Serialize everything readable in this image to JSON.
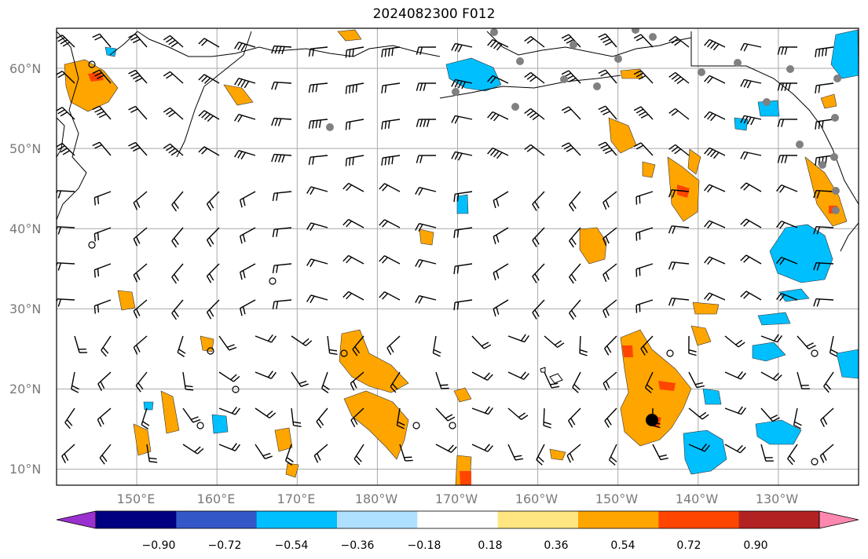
{
  "title": "2024082300 F012",
  "lat_labels": [
    "60°N",
    "50°N",
    "40°N",
    "30°N",
    "20°N",
    "10°N"
  ],
  "lon_labels": [
    "150°E",
    "160°E",
    "170°E",
    "180°W",
    "170°W",
    "160°W",
    "150°W",
    "140°W",
    "130°W"
  ],
  "colorbar": {
    "tick_labels": [
      "−0.90",
      "−0.72",
      "−0.54",
      "−0.36",
      "−0.18",
      "0.18",
      "0.36",
      "0.54",
      "0.72",
      "0.90"
    ],
    "colors": [
      "#9b30d0",
      "#000080",
      "#3457c8",
      "#00bfff",
      "#b0e0ff",
      "#ffffff",
      "#ffe680",
      "#ffa500",
      "#ff4500",
      "#b22222",
      "#ff88b0"
    ],
    "extend": "both"
  },
  "map": {
    "lat_range": [
      8,
      65
    ],
    "lon_range": [
      140,
      240
    ],
    "grid": true,
    "coastline_color": "#000000",
    "station_color": "#808080",
    "positive_colors": [
      "#ffa500",
      "#ff4500"
    ],
    "negative_color": "#00bfff"
  }
}
